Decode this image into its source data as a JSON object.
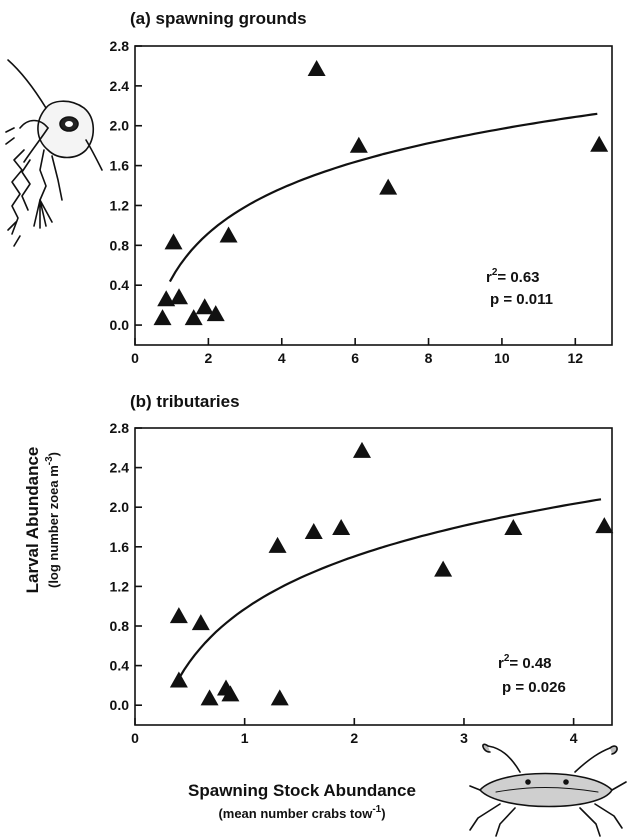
{
  "ylabel_main": "Larval Abundance",
  "ylabel_sub_prefix": "(log number zoea m",
  "ylabel_sub_sup": "-3",
  "ylabel_sub_suffix": ")",
  "xlabel_main": "Spawning Stock Abundance",
  "xlabel_sub_prefix": "(mean number crabs tow",
  "xlabel_sub_sup": "-1",
  "xlabel_sub_suffix": ")",
  "icons": {
    "top_left": "crab-zoea-larva-illustration",
    "bottom_right": "blue-crab-illustration"
  },
  "chart_data": [
    {
      "type": "scatter",
      "title": "(a) spawning grounds",
      "xlim": [
        0,
        13
      ],
      "ylim": [
        -0.2,
        2.8
      ],
      "xticks": [
        0,
        2,
        4,
        6,
        8,
        10,
        12
      ],
      "yticks": [
        0.0,
        0.4,
        0.8,
        1.2,
        1.6,
        2.0,
        2.4,
        2.8
      ],
      "xtick_labels": [
        "0",
        "2",
        "4",
        "6",
        "8",
        "10",
        "12"
      ],
      "ytick_labels": [
        "0.0",
        "0.4",
        "0.8",
        "1.2",
        "1.6",
        "2.0",
        "2.4",
        "2.8"
      ],
      "grid": false,
      "marker": "filled-triangle",
      "points": [
        {
          "x": 0.75,
          "y": 0.06
        },
        {
          "x": 0.85,
          "y": 0.25
        },
        {
          "x": 1.05,
          "y": 0.82
        },
        {
          "x": 1.2,
          "y": 0.27
        },
        {
          "x": 1.6,
          "y": 0.06
        },
        {
          "x": 1.9,
          "y": 0.17
        },
        {
          "x": 2.2,
          "y": 0.1
        },
        {
          "x": 2.55,
          "y": 0.89
        },
        {
          "x": 4.95,
          "y": 2.56
        },
        {
          "x": 6.1,
          "y": 1.79
        },
        {
          "x": 6.9,
          "y": 1.37
        },
        {
          "x": 12.65,
          "y": 1.8
        }
      ],
      "fit": {
        "type": "logarithmic",
        "x_from": 0.95,
        "x_to": 12.6,
        "y_at_1": 0.47,
        "y_at_12_6": 2.12
      },
      "r2_label": "r",
      "r2_sup": "2",
      "r2_value": "= 0.63",
      "p_text": "p = 0.011"
    },
    {
      "type": "scatter",
      "title": "(b) tributaries",
      "xlim": [
        0,
        4.35
      ],
      "ylim": [
        -0.2,
        2.8
      ],
      "xticks": [
        0,
        1,
        2,
        3,
        4
      ],
      "yticks": [
        0.0,
        0.4,
        0.8,
        1.2,
        1.6,
        2.0,
        2.4,
        2.8
      ],
      "xtick_labels": [
        "0",
        "1",
        "2",
        "3",
        "4"
      ],
      "ytick_labels": [
        "0.0",
        "0.4",
        "0.8",
        "1.2",
        "1.6",
        "2.0",
        "2.4",
        "2.8"
      ],
      "grid": false,
      "marker": "filled-triangle",
      "points": [
        {
          "x": 0.4,
          "y": 0.89
        },
        {
          "x": 0.4,
          "y": 0.24
        },
        {
          "x": 0.6,
          "y": 0.82
        },
        {
          "x": 0.68,
          "y": 0.06
        },
        {
          "x": 0.83,
          "y": 0.16
        },
        {
          "x": 0.87,
          "y": 0.1
        },
        {
          "x": 1.3,
          "y": 1.6
        },
        {
          "x": 1.32,
          "y": 0.06
        },
        {
          "x": 1.63,
          "y": 1.74
        },
        {
          "x": 1.88,
          "y": 1.78
        },
        {
          "x": 2.07,
          "y": 2.56
        },
        {
          "x": 2.81,
          "y": 1.36
        },
        {
          "x": 3.45,
          "y": 1.78
        },
        {
          "x": 4.28,
          "y": 1.8
        }
      ],
      "fit": {
        "type": "logarithmic",
        "x_from": 0.4,
        "x_to": 4.25,
        "y_at_0_4": 0.27,
        "y_at_4_25": 2.08
      },
      "r2_label": "r",
      "r2_sup": "2",
      "r2_value": "= 0.48",
      "p_text": "p = 0.026"
    }
  ]
}
